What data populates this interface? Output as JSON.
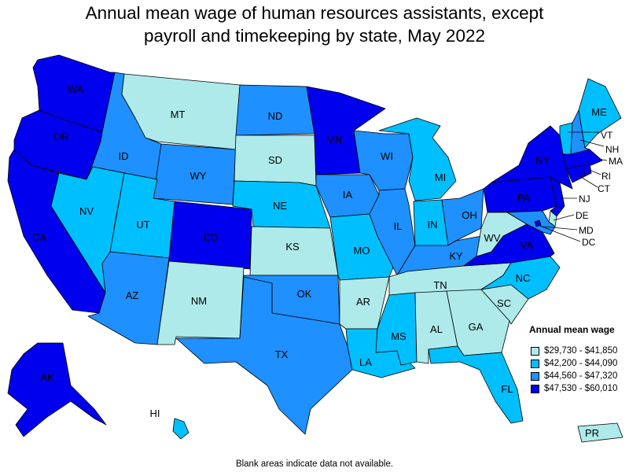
{
  "title": {
    "line1": "Annual mean wage of human resources assistants, except",
    "line2": "payroll and timekeeping by state, May 2022"
  },
  "legend": {
    "title": "Annual mean wage",
    "bins": [
      {
        "label": "$29,730 - $41,850",
        "color": "#aeeaea"
      },
      {
        "label": "$42,200 - $44,090",
        "color": "#00bfff"
      },
      {
        "label": "$44,560 - $47,320",
        "color": "#1e90ff"
      },
      {
        "label": "$47,530 - $60,010",
        "color": "#0000ee"
      }
    ]
  },
  "footnote": "Blank areas indicate data not available.",
  "states": {
    "WA": 3,
    "OR": 3,
    "CA": 3,
    "AK": 3,
    "ID": 2,
    "NV": 1,
    "MT": 0,
    "WY": 2,
    "UT": 1,
    "AZ": 2,
    "CO": 3,
    "NM": 0,
    "ND": 2,
    "SD": 0,
    "NE": 1,
    "KS": 0,
    "OK": 2,
    "TX": 2,
    "MN": 3,
    "IA": 2,
    "MO": 1,
    "AR": 0,
    "LA": 1,
    "WI": 2,
    "IL": 2,
    "MI": 1,
    "IN": 1,
    "OH": 2,
    "KY": 2,
    "TN": 0,
    "MS": 1,
    "AL": 0,
    "GA": 0,
    "FL": 1,
    "SC": 0,
    "NC": 1,
    "VA": 3,
    "WV": 0,
    "PA": 3,
    "NY": 3,
    "ME": 1,
    "VT": 1,
    "NH": 2,
    "MA": 3,
    "RI": 3,
    "CT": 3,
    "NJ": 3,
    "DE": 0,
    "MD": 2,
    "DC": 3,
    "HI": 1,
    "PR": 0
  },
  "labels": {
    "WA": "WA",
    "OR": "OR",
    "CA": "CA",
    "AK": "AK",
    "ID": "ID",
    "NV": "NV",
    "MT": "MT",
    "WY": "WY",
    "UT": "UT",
    "AZ": "AZ",
    "CO": "CO",
    "NM": "NM",
    "ND": "ND",
    "SD": "SD",
    "NE": "NE",
    "KS": "KS",
    "OK": "OK",
    "TX": "TX",
    "MN": "MN",
    "IA": "IA",
    "MO": "MO",
    "AR": "AR",
    "LA": "LA",
    "WI": "WI",
    "IL": "IL",
    "MI": "MI",
    "IN": "IN",
    "OH": "OH",
    "KY": "KY",
    "TN": "TN",
    "MS": "MS",
    "AL": "AL",
    "GA": "GA",
    "FL": "FL",
    "SC": "SC",
    "NC": "NC",
    "VA": "VA",
    "WV": "WV",
    "PA": "PA",
    "NY": "NY",
    "ME": "ME",
    "VT": "VT",
    "NH": "NH",
    "MA": "MA",
    "RI": "RI",
    "CT": "CT",
    "NJ": "NJ",
    "DE": "DE",
    "MD": "MD",
    "DC": "DC",
    "HI": "HI",
    "PR": "PR"
  }
}
